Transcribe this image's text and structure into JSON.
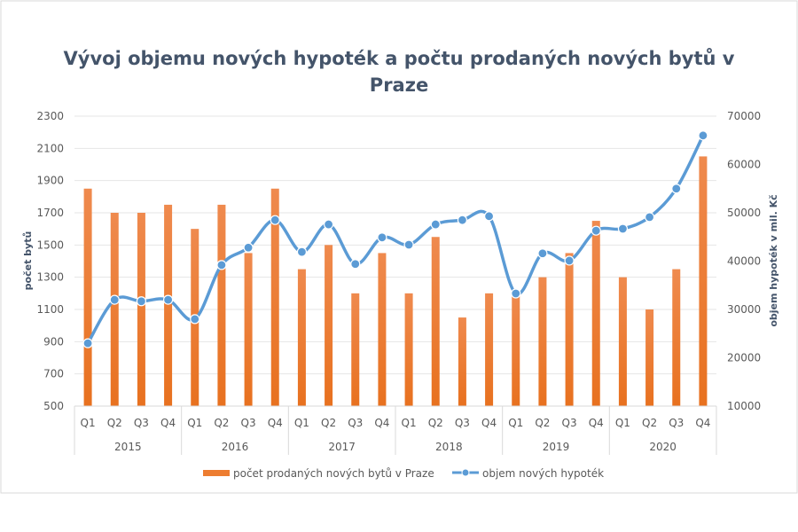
{
  "chart_data": {
    "type": "bar+line",
    "title_lines": [
      "Vývoj objemu nových hypoték a počtu prodaných nových bytů v",
      "Praze"
    ],
    "ylabel_left": "počet bytů",
    "ylabel_right": "objem hypoték v mil. Kč",
    "ylim_left": [
      500,
      2300
    ],
    "yticks_left": [
      "500",
      "700",
      "900",
      "1100",
      "1300",
      "1500",
      "1700",
      "1900",
      "2100",
      "2300"
    ],
    "ylim_right": [
      10000,
      70000
    ],
    "yticks_right": [
      "10000",
      "20000",
      "30000",
      "40000",
      "50000",
      "60000",
      "70000"
    ],
    "years": [
      "2015",
      "2016",
      "2017",
      "2018",
      "2019",
      "2020"
    ],
    "quarters": [
      "Q1",
      "Q2",
      "Q3",
      "Q4"
    ],
    "grid": true,
    "legend_position": "bottom",
    "colors": {
      "bar": "#ed7d31",
      "line": "#5b9bd5",
      "title": "#44546a"
    },
    "series": [
      {
        "name": "počet prodaných nových bytů v Praze",
        "type": "bar",
        "axis": "left",
        "values": [
          1850,
          1700,
          1700,
          1750,
          1600,
          1750,
          1450,
          1850,
          1350,
          1500,
          1200,
          1450,
          1200,
          1550,
          1050,
          1200,
          1200,
          1300,
          1450,
          1650,
          1300,
          1100,
          1350,
          2050
        ]
      },
      {
        "name": "objem nových hypoték",
        "type": "line",
        "axis": "right",
        "values": [
          23000,
          32000,
          31700,
          32000,
          28000,
          39200,
          42800,
          48500,
          41900,
          47600,
          39400,
          44900,
          43400,
          47600,
          48500,
          49300,
          33300,
          41600,
          40100,
          46300,
          46700,
          49100,
          55000,
          66000
        ]
      }
    ]
  }
}
